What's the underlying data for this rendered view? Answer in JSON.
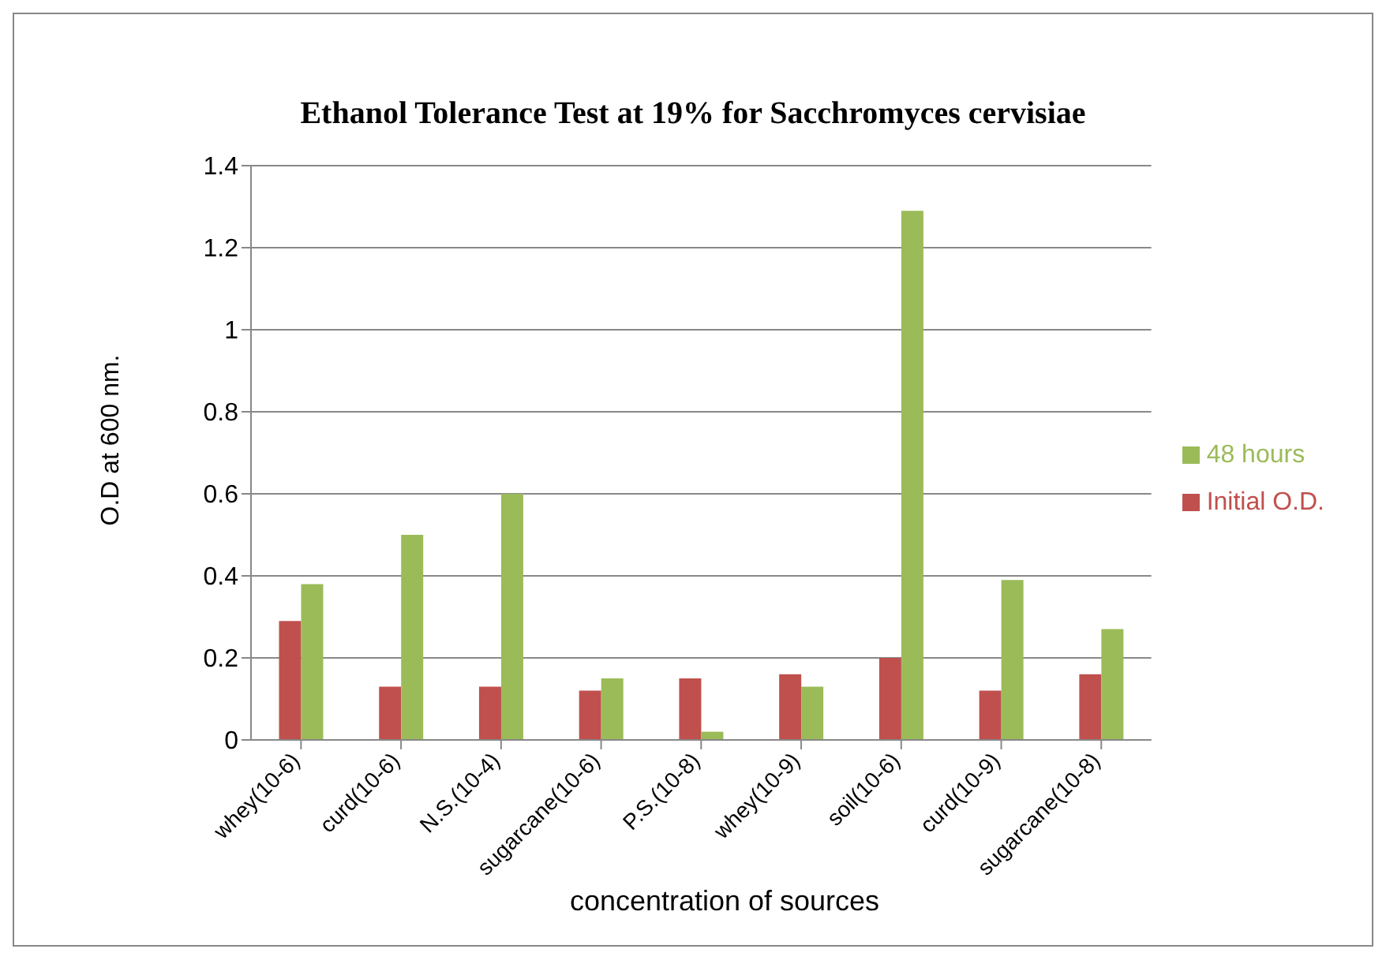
{
  "chart_data": {
    "type": "bar",
    "title": "Ethanol  Tolerance Test at 19% for Sacchromyces cervisiae",
    "xlabel": "concentration of sources",
    "ylabel": "O.D at 600 nm.",
    "categories": [
      "whey(10-6)",
      "curd(10-6)",
      "N.S.(10-4)",
      "sugarcane(10-6)",
      "P.S.(10-8)",
      "whey(10-9)",
      "soil(10-6)",
      "curd(10-9)",
      "sugarcane(10-8)"
    ],
    "series": [
      {
        "name": "Initial O.D.",
        "color": "#c0504d",
        "values": [
          0.29,
          0.13,
          0.13,
          0.12,
          0.15,
          0.16,
          0.2,
          0.12,
          0.16
        ]
      },
      {
        "name": "48 hours",
        "color": "#9bbb59",
        "values": [
          0.38,
          0.5,
          0.6,
          0.15,
          0.02,
          0.13,
          1.29,
          0.39,
          0.27
        ]
      }
    ],
    "ylim": [
      0,
      1.4
    ],
    "yticks": [
      0,
      0.2,
      0.4,
      0.6,
      0.8,
      1,
      1.2,
      1.4
    ],
    "grid": "y",
    "legend": "right"
  }
}
